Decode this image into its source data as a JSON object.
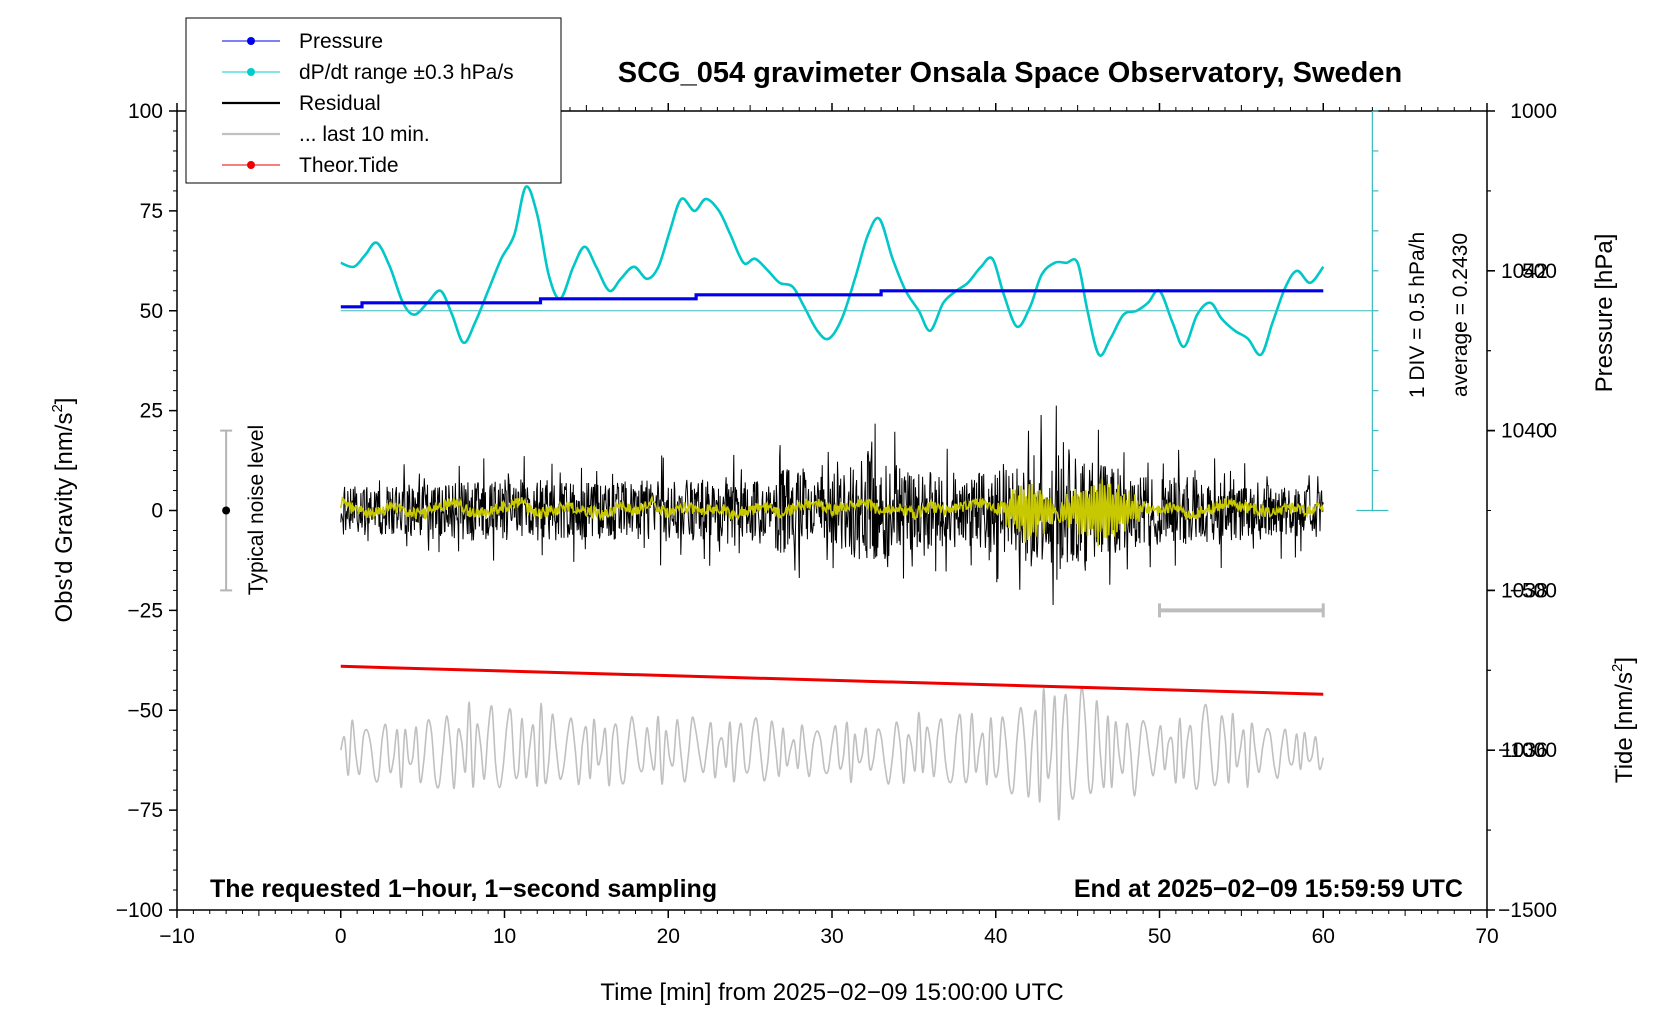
{
  "chart_data": {
    "type": "line",
    "title": "SCG_054 gravimeter Onsala Space Observatory, Sweden",
    "xlabel": "Time [min] from 2025−02−09 15:00:00 UTC",
    "ylabel_left": "Obs'd Gravity [nm/s²]",
    "ylabel_left_text": "Obs'd Gravity [nm/s",
    "ylabel_right_pressure": "Pressure [hPa]",
    "ylabel_right_tide": "Tide [nm/s²]",
    "ylabel_right_tide_text": "Tide [nm/s",
    "superscript_two": "2",
    "xlim": [
      -10,
      70
    ],
    "ylim": [
      -100,
      100
    ],
    "x_ticks": [
      -10,
      0,
      10,
      20,
      30,
      40,
      50,
      60,
      70
    ],
    "x_tick_labels": [
      "−10",
      "0",
      "10",
      "20",
      "30",
      "40",
      "50",
      "60",
      "70"
    ],
    "y_ticks": [
      100,
      75,
      50,
      25,
      0,
      -25,
      -50,
      -75,
      -100
    ],
    "y_tick_labels": [
      "100",
      "75",
      "50",
      "25",
      "0",
      "−25",
      "−50",
      "−75",
      "−100"
    ],
    "pressure_axis": {
      "ticks": [
        1042,
        1040,
        1038,
        1036
      ],
      "tick_labels": [
        "1042",
        "1040",
        "1038",
        "1036"
      ],
      "range": [
        1034,
        1044
      ]
    },
    "tide_axis": {
      "ticks": [
        1000,
        500,
        0,
        -500,
        -1000,
        -1500
      ],
      "tick_labels": [
        "1000",
        "500",
        "0",
        "−500",
        "−1000",
        "−1500"
      ],
      "range": [
        -1500,
        1000
      ]
    },
    "legend": [
      {
        "label": "Pressure",
        "color": "#0000ee",
        "marker": true
      },
      {
        "label": "dP/dt range ±0.3 hPa/s",
        "color": "#00cccc",
        "marker": true
      },
      {
        "label": "Residual",
        "color": "#000000",
        "marker": false
      },
      {
        "label": "... last 10 min.",
        "color": "#c0c0c0",
        "marker": false
      },
      {
        "label": "Theor.Tide",
        "color": "#ee0000",
        "marker": true
      }
    ],
    "series": {
      "pressure": {
        "name": "Pressure",
        "color": "#0000ee",
        "step_times_min": [
          0,
          1.3,
          12.2,
          21.7,
          33.0,
          60
        ],
        "step_values_nms2": [
          51,
          52,
          53,
          54,
          55,
          55
        ]
      },
      "dpdt": {
        "name": "dP/dt range ±0.3 hPa/s",
        "color": "#00c8c8",
        "points": [
          [
            0,
            62
          ],
          [
            0.8,
            61
          ],
          [
            1.5,
            64
          ],
          [
            2.2,
            67
          ],
          [
            3,
            61
          ],
          [
            3.8,
            52
          ],
          [
            4.5,
            49
          ],
          [
            5.3,
            52
          ],
          [
            6.1,
            55
          ],
          [
            6.8,
            49
          ],
          [
            7.5,
            42
          ],
          [
            8.2,
            47
          ],
          [
            9,
            55
          ],
          [
            9.8,
            63
          ],
          [
            10.6,
            69
          ],
          [
            11.3,
            81
          ],
          [
            12,
            74
          ],
          [
            12.7,
            59
          ],
          [
            13.4,
            53
          ],
          [
            14.2,
            61
          ],
          [
            14.9,
            66
          ],
          [
            15.6,
            61
          ],
          [
            16.4,
            55
          ],
          [
            17.1,
            58
          ],
          [
            17.9,
            61
          ],
          [
            18.7,
            58
          ],
          [
            19.4,
            61
          ],
          [
            20.1,
            70
          ],
          [
            20.8,
            78
          ],
          [
            21.6,
            75
          ],
          [
            22.3,
            78
          ],
          [
            23.1,
            75
          ],
          [
            23.8,
            69
          ],
          [
            24.6,
            62
          ],
          [
            25.3,
            63
          ],
          [
            26.1,
            60
          ],
          [
            26.8,
            57
          ],
          [
            27.6,
            56
          ],
          [
            28.3,
            51
          ],
          [
            29.1,
            45
          ],
          [
            29.8,
            43
          ],
          [
            30.6,
            48
          ],
          [
            31.4,
            58
          ],
          [
            32.2,
            69
          ],
          [
            32.9,
            73
          ],
          [
            33.7,
            63
          ],
          [
            34.5,
            55
          ],
          [
            35.3,
            50
          ],
          [
            36,
            45
          ],
          [
            36.8,
            52
          ],
          [
            37.6,
            55
          ],
          [
            38.3,
            57
          ],
          [
            39.1,
            61
          ],
          [
            39.8,
            63
          ],
          [
            40.5,
            54
          ],
          [
            41.3,
            46
          ],
          [
            42.1,
            51
          ],
          [
            42.8,
            59
          ],
          [
            43.6,
            62
          ],
          [
            44.3,
            62
          ],
          [
            45,
            62
          ],
          [
            45.6,
            50
          ],
          [
            46.3,
            39
          ],
          [
            47,
            43
          ],
          [
            47.8,
            49
          ],
          [
            48.6,
            50
          ],
          [
            49.3,
            52
          ],
          [
            50,
            55
          ],
          [
            50.8,
            47
          ],
          [
            51.5,
            41
          ],
          [
            52.3,
            49
          ],
          [
            53.1,
            52
          ],
          [
            53.8,
            48
          ],
          [
            54.6,
            45
          ],
          [
            55.4,
            43
          ],
          [
            56.2,
            39
          ],
          [
            56.9,
            47
          ],
          [
            57.7,
            56
          ],
          [
            58.4,
            60
          ],
          [
            59.2,
            57
          ],
          [
            60,
            61
          ]
        ]
      },
      "dpdt_reference_level_nms2": 50,
      "residual": {
        "name": "Residual",
        "color": "#000000",
        "baseline_nms2": 0,
        "envelope_nms2": [
          [
            0,
            11
          ],
          [
            5,
            12
          ],
          [
            10,
            15
          ],
          [
            15,
            13
          ],
          [
            20,
            14
          ],
          [
            25,
            14
          ],
          [
            27,
            20
          ],
          [
            30,
            15
          ],
          [
            32,
            26
          ],
          [
            35,
            18
          ],
          [
            38,
            17
          ],
          [
            40,
            18
          ],
          [
            42,
            22
          ],
          [
            44,
            27
          ],
          [
            46,
            22
          ],
          [
            48,
            18
          ],
          [
            50,
            16
          ],
          [
            55,
            14
          ],
          [
            60,
            11
          ]
        ]
      },
      "smoothed": {
        "name": "smoothed residual",
        "color": "#c8c800",
        "points": [
          [
            0,
            2
          ],
          [
            1,
            0
          ],
          [
            2,
            -1
          ],
          [
            3,
            1
          ],
          [
            4,
            0
          ],
          [
            5,
            -1
          ],
          [
            6,
            1
          ],
          [
            7,
            2
          ],
          [
            8,
            -1
          ],
          [
            9,
            0
          ],
          [
            10,
            1
          ],
          [
            11,
            2
          ],
          [
            12,
            -1
          ],
          [
            13,
            0
          ],
          [
            14,
            1
          ],
          [
            15,
            0
          ],
          [
            16,
            -1
          ],
          [
            17,
            1
          ],
          [
            18,
            0
          ],
          [
            19,
            2
          ],
          [
            20,
            -1
          ],
          [
            21,
            1
          ],
          [
            22,
            0
          ],
          [
            23,
            1
          ],
          [
            24,
            -1
          ],
          [
            25,
            0
          ],
          [
            26,
            1
          ],
          [
            27,
            -1
          ],
          [
            28,
            1
          ],
          [
            29,
            2
          ],
          [
            30,
            0
          ],
          [
            31,
            1
          ],
          [
            32,
            2
          ],
          [
            33,
            0
          ],
          [
            34,
            1
          ],
          [
            35,
            -1
          ],
          [
            36,
            1
          ],
          [
            37,
            0
          ],
          [
            38,
            1
          ],
          [
            39,
            2
          ],
          [
            40,
            0
          ],
          [
            41,
            3
          ],
          [
            42,
            -5
          ],
          [
            43,
            4
          ],
          [
            44,
            -3
          ],
          [
            45,
            6
          ],
          [
            46,
            -4
          ],
          [
            47,
            3
          ],
          [
            48,
            -2
          ],
          [
            49,
            1
          ],
          [
            50,
            0
          ],
          [
            51,
            1
          ],
          [
            52,
            -1
          ],
          [
            53,
            0
          ],
          [
            54,
            2
          ],
          [
            55,
            1
          ],
          [
            56,
            0
          ],
          [
            57,
            -1
          ],
          [
            58,
            1
          ],
          [
            59,
            0
          ],
          [
            60,
            1
          ]
        ],
        "burst_regions_min": [
          [
            40.5,
            43.5
          ],
          [
            44,
            48.8
          ]
        ],
        "burst_amplitude_nms2": 8
      },
      "last10": {
        "name": "... last 10 min.",
        "color": "#c0c0c0",
        "center_nms2": -60,
        "amplitude_nms2": [
          [
            0,
            8
          ],
          [
            5,
            10
          ],
          [
            9,
            14
          ],
          [
            12,
            14
          ],
          [
            15,
            10
          ],
          [
            20,
            10
          ],
          [
            25,
            9
          ],
          [
            30,
            8
          ],
          [
            35,
            9
          ],
          [
            37,
            14
          ],
          [
            40,
            12
          ],
          [
            44,
            22
          ],
          [
            47,
            13
          ],
          [
            50,
            10
          ],
          [
            53,
            14
          ],
          [
            56,
            9
          ],
          [
            60,
            6
          ]
        ]
      },
      "theor_tide": {
        "name": "Theor.Tide",
        "color": "#ee0000",
        "points": [
          [
            0,
            -39
          ],
          [
            60,
            -46
          ]
        ]
      }
    },
    "noise_bar": {
      "x_min": -7,
      "y_center": 0,
      "y_low": -20,
      "y_high": 20,
      "label": "Typical noise level"
    },
    "last10_span_bar": {
      "x_start": 50,
      "x_end": 60,
      "y": -25
    },
    "pressure_scale_bar": {
      "x_min": 63,
      "y_bottom": 0,
      "y_top": 100,
      "divisions": 10
    },
    "annotation_div": "1 DIV = 0.5 hPa/h",
    "annotation_average": "average = 0.2430",
    "note_left": "The requested 1−hour, 1−second sampling",
    "note_right": "End at 2025−02−09 15:59:59 UTC"
  }
}
